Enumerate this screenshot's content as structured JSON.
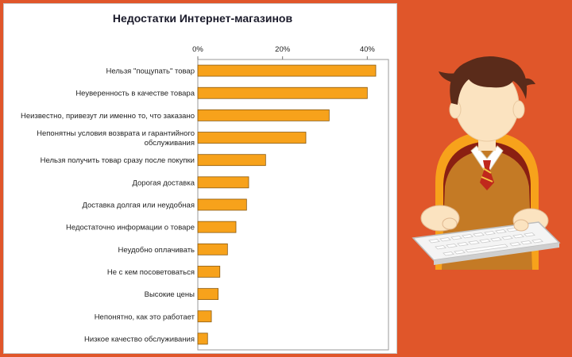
{
  "chart_data": {
    "type": "bar",
    "orientation": "horizontal",
    "title": "Недостатки Интернет-магазинов",
    "categories": [
      [
        "Нельзя \"пощупать\" товар"
      ],
      [
        "Неуверенность в качестве товара"
      ],
      [
        "Неизвестно, привезут ли именно то, что заказано"
      ],
      [
        "Непонятны условия возврата и гарантийного",
        "обслуживания"
      ],
      [
        "Нельзя получить товар сразу после покупки"
      ],
      [
        "Дорогая доставка"
      ],
      [
        "Доставка долгая или неудобная"
      ],
      [
        "Недостаточно информации о товаре"
      ],
      [
        "Неудобно оплачивать"
      ],
      [
        "Не с кем посоветоваться"
      ],
      [
        "Высокие цены"
      ],
      [
        "Непонятно, как это работает"
      ],
      [
        "Низкое качество обслуживания"
      ]
    ],
    "values": [
      42,
      40,
      31,
      25.5,
      16,
      12,
      11.5,
      9,
      7,
      5.2,
      4.8,
      3.2,
      2.3
    ],
    "xlim": [
      0,
      45
    ],
    "xticks": [
      "0%",
      "20%",
      "40%"
    ],
    "xtick_values": [
      0,
      20,
      40
    ],
    "grid": false,
    "colors": {
      "bar": "#f7a21b",
      "bar_edge": "#8a5a10"
    }
  },
  "illustration": {
    "icon": "office-worker-at-keyboard",
    "colors": {
      "background": "#e0562a",
      "sweater": "#c47a25",
      "hair": "#5a2b1a",
      "skin": "#fbe3c0"
    }
  }
}
